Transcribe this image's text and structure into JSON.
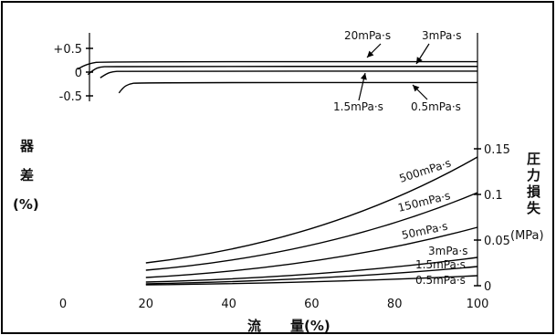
{
  "chart_data": [
    {
      "type": "line",
      "name": "instrument_error",
      "x": [
        0,
        100
      ],
      "ylim": [
        -0.8,
        0.8
      ],
      "ylabel_chars": [
        "器",
        "差"
      ],
      "ylabel_unit": "(%)",
      "yticks": [
        {
          "value": 0.5,
          "label": "+0.5"
        },
        {
          "value": 0,
          "label": "0"
        },
        {
          "value": -0.5,
          "label": "-0.5"
        }
      ],
      "series": [
        {
          "name": "20mPa·s",
          "level": 0.22,
          "start_x": 3.5,
          "points": [
            [
              3.5,
              0.06
            ],
            [
              5,
              0.14
            ],
            [
              7,
              0.19
            ],
            [
              9,
              0.22
            ],
            [
              100,
              0.22
            ]
          ]
        },
        {
          "name": "3mPa·s",
          "level": 0.12,
          "start_x": 6,
          "points": [
            [
              6,
              -0.05
            ],
            [
              7.5,
              0.06
            ],
            [
              9,
              0.11
            ],
            [
              11,
              0.12
            ],
            [
              100,
              0.12
            ]
          ]
        },
        {
          "name": "1.5mPa·s",
          "level": 0.02,
          "start_x": 9,
          "points": [
            [
              9,
              -0.12
            ],
            [
              10.5,
              -0.03
            ],
            [
              12,
              0.01
            ],
            [
              14,
              0.02
            ],
            [
              100,
              0.02
            ]
          ]
        },
        {
          "name": "0.5mPa·s",
          "level": -0.22,
          "start_x": 13.5,
          "points": [
            [
              13.5,
              -0.44
            ],
            [
              14.5,
              -0.32
            ],
            [
              16,
              -0.25
            ],
            [
              18,
              -0.22
            ],
            [
              100,
              -0.22
            ]
          ]
        }
      ]
    },
    {
      "type": "line",
      "name": "pressure_loss",
      "x": [
        20,
        100
      ],
      "ylim": [
        0,
        0.19
      ],
      "ylabel_chars": [
        "圧",
        "力",
        "損",
        "失"
      ],
      "ylabel_unit": "(MPa)",
      "yticks": [
        {
          "value": 0,
          "label": "0"
        },
        {
          "value": 0.05,
          "label": "0.05"
        },
        {
          "value": 0.1,
          "label": "0.1"
        },
        {
          "value": 0.15,
          "label": "0.15"
        }
      ],
      "series": [
        {
          "name": "500mPa·s",
          "points": [
            [
              20,
              0.025
            ],
            [
              100,
              0.141
            ]
          ]
        },
        {
          "name": "150mPa·s",
          "points": [
            [
              20,
              0.017
            ],
            [
              100,
              0.102
            ]
          ]
        },
        {
          "name": "50mPa·s",
          "points": [
            [
              20,
              0.009
            ],
            [
              100,
              0.064
            ]
          ]
        },
        {
          "name": "3mPa·s",
          "points": [
            [
              20,
              0.004
            ],
            [
              100,
              0.031
            ]
          ]
        },
        {
          "name": "1.5mPa·s",
          "points": [
            [
              20,
              0.002
            ],
            [
              100,
              0.021
            ]
          ]
        },
        {
          "name": "0.5mPa·s",
          "points": [
            [
              20,
              0.001
            ],
            [
              100,
              0.011
            ]
          ]
        }
      ]
    }
  ],
  "x_axis": {
    "ticks": [
      {
        "value": 0,
        "label": "0"
      },
      {
        "value": 20,
        "label": "20"
      },
      {
        "value": 40,
        "label": "40"
      },
      {
        "value": 60,
        "label": "60"
      },
      {
        "value": 80,
        "label": "80"
      },
      {
        "value": 100,
        "label": "100"
      }
    ],
    "label_parts": [
      "流",
      "量(%)"
    ]
  }
}
